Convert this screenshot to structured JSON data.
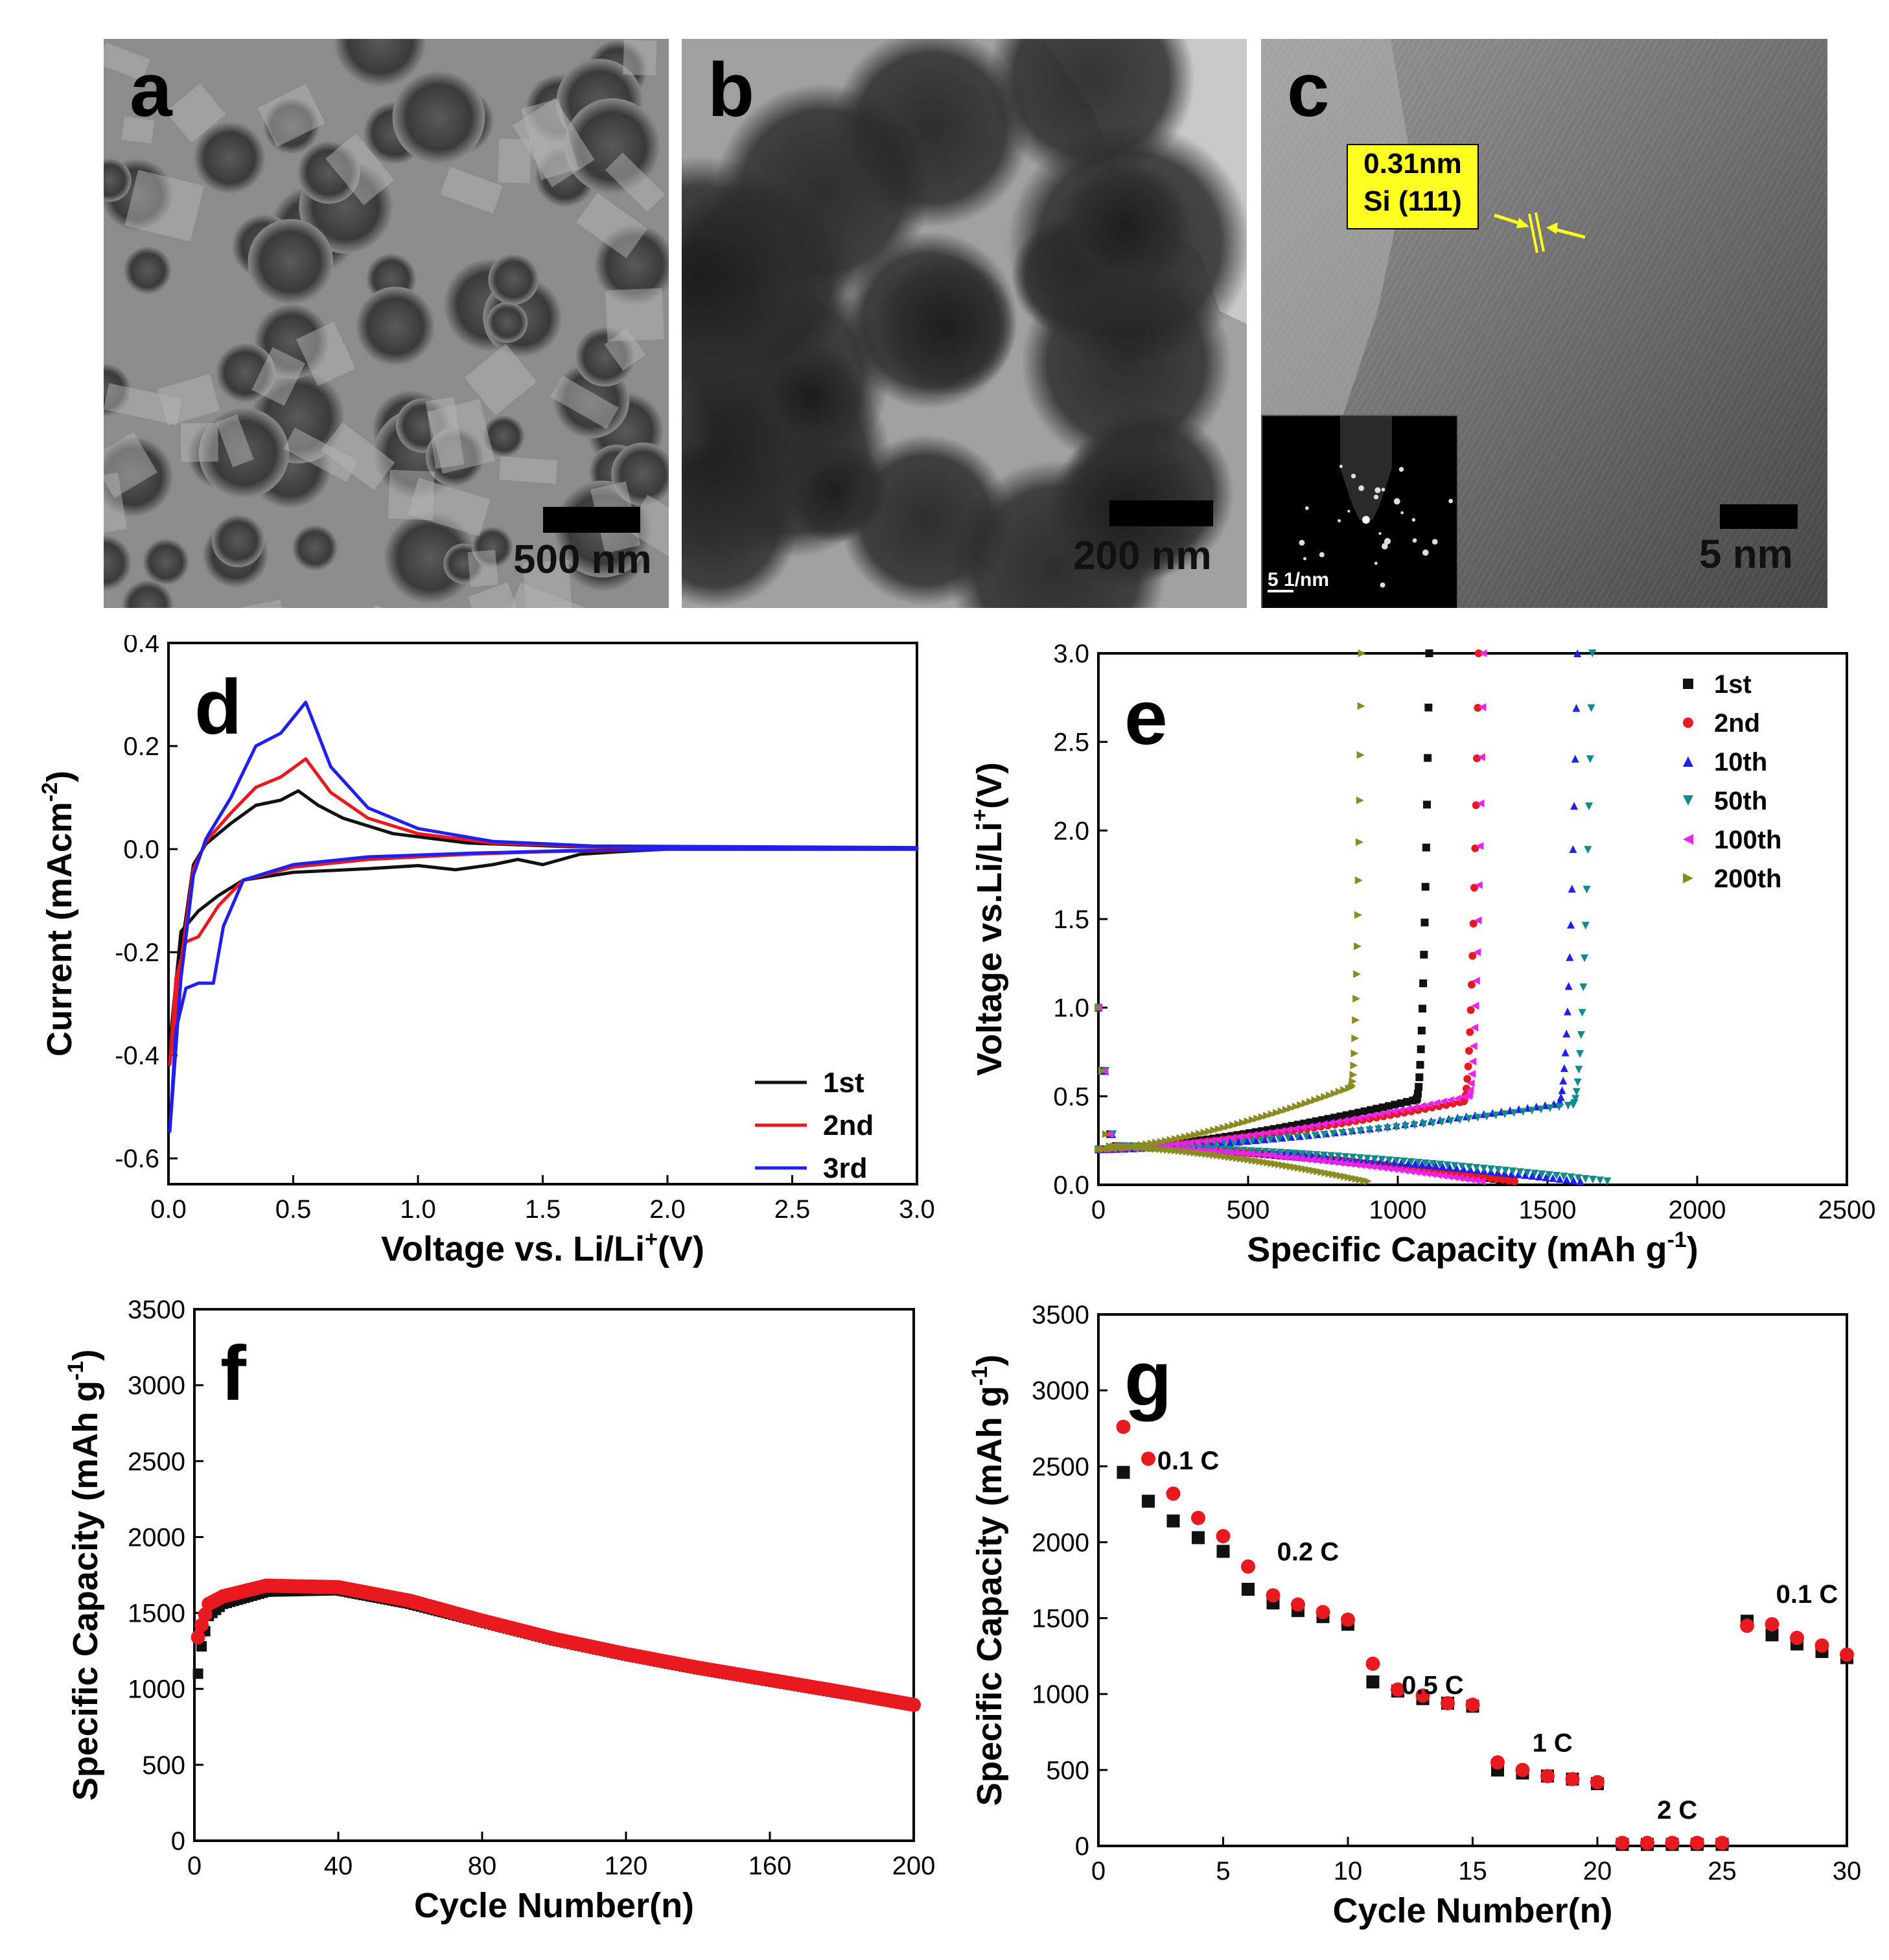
{
  "figure": {
    "a": {
      "label": "a",
      "scale": "500 nm"
    },
    "b": {
      "label": "b",
      "scale": "200 nm"
    },
    "c": {
      "label": "c",
      "scale": "5 nm",
      "annotation_line1": "0.31nm",
      "annotation_line2": "Si (111)",
      "inset_scale": "5 1/nm"
    }
  },
  "colors": {
    "black": "#111111",
    "red": "#e8191f",
    "blue": "#1f1ff0",
    "teal": "#138b8b",
    "magenta": "#ee22ee",
    "olive": "#8b8b22",
    "highlight": "#ffff22"
  },
  "chart_data": [
    {
      "id": "d",
      "label": "d",
      "type": "line",
      "title": "",
      "xlabel": "Voltage  vs. Li/Li",
      "xlabel_sup": "+",
      "xlabel_tail": "(V)",
      "ylabel": "Current (mAcm",
      "ylabel_sup": "-2",
      "ylabel_tail": ")",
      "xlim": [
        0,
        3
      ],
      "ylim": [
        -0.65,
        0.4
      ],
      "xticks": [
        "0.0",
        "0.5",
        "1.0",
        "1.5",
        "2.0",
        "2.5",
        "3.0"
      ],
      "yticks": [
        "-0.6",
        "-0.4",
        "-0.2",
        "0.0",
        "0.2",
        "0.4"
      ],
      "legend": [
        "1st",
        "2nd",
        "3rd"
      ],
      "series": [
        {
          "name": "1st",
          "color": "#111111",
          "anodic": [
            [
              0.005,
              -0.38
            ],
            [
              0.05,
              -0.2
            ],
            [
              0.1,
              -0.03
            ],
            [
              0.15,
              0.01
            ],
            [
              0.25,
              0.05
            ],
            [
              0.35,
              0.085
            ],
            [
              0.45,
              0.095
            ],
            [
              0.52,
              0.113
            ],
            [
              0.6,
              0.085
            ],
            [
              0.7,
              0.06
            ],
            [
              0.9,
              0.03
            ],
            [
              1.2,
              0.012
            ],
            [
              1.6,
              0.005
            ],
            [
              2.0,
              0.003
            ],
            [
              3.0,
              0.002
            ]
          ],
          "cathodic": [
            [
              3.0,
              0.0
            ],
            [
              2.0,
              0.0
            ],
            [
              1.8,
              -0.005
            ],
            [
              1.65,
              -0.01
            ],
            [
              1.5,
              -0.03
            ],
            [
              1.4,
              -0.02
            ],
            [
              1.3,
              -0.03
            ],
            [
              1.15,
              -0.04
            ],
            [
              1.0,
              -0.032
            ],
            [
              0.8,
              -0.038
            ],
            [
              0.5,
              -0.045
            ],
            [
              0.3,
              -0.06
            ],
            [
              0.2,
              -0.09
            ],
            [
              0.12,
              -0.12
            ],
            [
              0.05,
              -0.16
            ],
            [
              0.005,
              -0.38
            ]
          ]
        },
        {
          "name": "2nd",
          "color": "#e8191f",
          "anodic": [
            [
              0.005,
              -0.42
            ],
            [
              0.05,
              -0.22
            ],
            [
              0.1,
              -0.04
            ],
            [
              0.15,
              0.015
            ],
            [
              0.25,
              0.07
            ],
            [
              0.35,
              0.12
            ],
            [
              0.45,
              0.14
            ],
            [
              0.55,
              0.175
            ],
            [
              0.65,
              0.11
            ],
            [
              0.8,
              0.06
            ],
            [
              1.0,
              0.03
            ],
            [
              1.3,
              0.012
            ],
            [
              1.7,
              0.005
            ],
            [
              3.0,
              0.002
            ]
          ],
          "cathodic": [
            [
              3.0,
              0.0
            ],
            [
              2.0,
              0.0
            ],
            [
              1.8,
              -0.002
            ],
            [
              1.5,
              -0.005
            ],
            [
              1.2,
              -0.01
            ],
            [
              0.8,
              -0.02
            ],
            [
              0.5,
              -0.035
            ],
            [
              0.3,
              -0.06
            ],
            [
              0.2,
              -0.11
            ],
            [
              0.12,
              -0.17
            ],
            [
              0.07,
              -0.18
            ],
            [
              0.03,
              -0.25
            ],
            [
              0.005,
              -0.42
            ]
          ]
        },
        {
          "name": "3rd",
          "color": "#1f1ff0",
          "anodic": [
            [
              0.005,
              -0.55
            ],
            [
              0.05,
              -0.25
            ],
            [
              0.1,
              -0.05
            ],
            [
              0.15,
              0.02
            ],
            [
              0.25,
              0.1
            ],
            [
              0.35,
              0.2
            ],
            [
              0.45,
              0.225
            ],
            [
              0.55,
              0.285
            ],
            [
              0.65,
              0.16
            ],
            [
              0.8,
              0.08
            ],
            [
              1.0,
              0.04
            ],
            [
              1.3,
              0.015
            ],
            [
              1.7,
              0.006
            ],
            [
              3.0,
              0.003
            ]
          ],
          "cathodic": [
            [
              3.0,
              0.0
            ],
            [
              2.0,
              0.0
            ],
            [
              1.6,
              -0.003
            ],
            [
              1.2,
              -0.008
            ],
            [
              0.8,
              -0.015
            ],
            [
              0.5,
              -0.03
            ],
            [
              0.3,
              -0.06
            ],
            [
              0.22,
              -0.15
            ],
            [
              0.18,
              -0.26
            ],
            [
              0.12,
              -0.26
            ],
            [
              0.07,
              -0.27
            ],
            [
              0.03,
              -0.35
            ],
            [
              0.005,
              -0.55
            ]
          ]
        }
      ]
    },
    {
      "id": "e",
      "label": "e",
      "type": "scatter",
      "xlabel": "Specific Capacity (mAh g",
      "xlabel_sup": "-1",
      "xlabel_tail": ")",
      "ylabel": "Voltage vs.Li/Li",
      "ylabel_sup": "+",
      "ylabel_tail": "(V)",
      "xlim": [
        0,
        2500
      ],
      "ylim": [
        0,
        3.0
      ],
      "xticks": [
        "0",
        "500",
        "1000",
        "1500",
        "2000",
        "2500"
      ],
      "yticks": [
        "0.0",
        "0.5",
        "1.0",
        "1.5",
        "2.0",
        "2.5",
        "3.0"
      ],
      "legend": [
        "1st",
        "2nd",
        "10th",
        "50th",
        "100th",
        "200th"
      ],
      "series": [
        {
          "name": "1st",
          "color": "#111111",
          "marker": "square",
          "discharge_cap": 1380,
          "charge_cap": 1105,
          "charge_plateau": 0.48
        },
        {
          "name": "2nd",
          "color": "#e8191f",
          "marker": "circle",
          "discharge_cap": 1390,
          "charge_cap": 1270,
          "charge_plateau": 0.47
        },
        {
          "name": "10th",
          "color": "#1f1ff0",
          "marker": "triangle-up",
          "discharge_cap": 1610,
          "charge_cap": 1600,
          "charge_plateau": 0.46
        },
        {
          "name": "50th",
          "color": "#138b8b",
          "marker": "triangle-down",
          "discharge_cap": 1700,
          "charge_cap": 1650,
          "charge_plateau": 0.45
        },
        {
          "name": "100th",
          "color": "#ee22ee",
          "marker": "triangle-left",
          "discharge_cap": 1280,
          "charge_cap": 1285,
          "charge_plateau": 0.5
        },
        {
          "name": "200th",
          "color": "#8b8b22",
          "marker": "triangle-right",
          "discharge_cap": 900,
          "charge_cap": 880,
          "charge_plateau": 0.55
        }
      ]
    },
    {
      "id": "f",
      "label": "f",
      "type": "scatter",
      "xlabel": "Cycle Number(n)",
      "ylabel": "Specific Capacity (mAh g",
      "ylabel_sup": "-1",
      "ylabel_tail": ")",
      "xlim": [
        0,
        200
      ],
      "ylim": [
        0,
        3500
      ],
      "xticks": [
        "0",
        "40",
        "80",
        "120",
        "160",
        "200"
      ],
      "yticks": [
        "0",
        "500",
        "1000",
        "1500",
        "2000",
        "2500",
        "3000",
        "3500"
      ],
      "series": [
        {
          "name": "charge",
          "color": "#111111",
          "marker": "square",
          "keypoints": [
            [
              1,
              1100
            ],
            [
              2,
              1280
            ],
            [
              4,
              1480
            ],
            [
              8,
              1560
            ],
            [
              20,
              1640
            ],
            [
              40,
              1650
            ],
            [
              60,
              1560
            ],
            [
              80,
              1440
            ],
            [
              100,
              1320
            ],
            [
              120,
              1220
            ],
            [
              140,
              1130
            ],
            [
              160,
              1050
            ],
            [
              180,
              970
            ],
            [
              200,
              890
            ]
          ]
        },
        {
          "name": "discharge",
          "color": "#e8191f",
          "marker": "circle",
          "keypoints": [
            [
              1,
              1340
            ],
            [
              2,
              1420
            ],
            [
              4,
              1560
            ],
            [
              8,
              1610
            ],
            [
              20,
              1680
            ],
            [
              40,
              1670
            ],
            [
              60,
              1580
            ],
            [
              80,
              1450
            ],
            [
              100,
              1330
            ],
            [
              120,
              1230
            ],
            [
              140,
              1140
            ],
            [
              160,
              1060
            ],
            [
              180,
              980
            ],
            [
              200,
              895
            ]
          ]
        }
      ]
    },
    {
      "id": "g",
      "label": "g",
      "type": "scatter",
      "xlabel": "Cycle Number(n)",
      "ylabel": "Specific Capacity (mAh g",
      "ylabel_sup": "-1",
      "ylabel_tail": ")",
      "xlim": [
        0,
        30
      ],
      "ylim": [
        0,
        3500
      ],
      "xticks": [
        "0",
        "5",
        "10",
        "15",
        "20",
        "25",
        "30"
      ],
      "yticks": [
        "0",
        "500",
        "1000",
        "1500",
        "2000",
        "2500",
        "3000",
        "3500"
      ],
      "annotations": [
        {
          "text": "0.1 C",
          "x": 3.6,
          "y": 2480
        },
        {
          "text": "0.2 C",
          "x": 8.4,
          "y": 1880
        },
        {
          "text": "0.5 C",
          "x": 13.4,
          "y": 1000
        },
        {
          "text": "1 C",
          "x": 18.2,
          "y": 620
        },
        {
          "text": "2 C",
          "x": 23.2,
          "y": 180
        },
        {
          "text": "0.1 C",
          "x": 28.4,
          "y": 1600
        }
      ],
      "x": [
        1,
        2,
        3,
        4,
        5,
        6,
        7,
        8,
        9,
        10,
        11,
        12,
        13,
        14,
        15,
        16,
        17,
        18,
        19,
        20,
        21,
        22,
        23,
        24,
        25,
        26,
        27,
        28,
        29,
        30
      ],
      "series": [
        {
          "name": "charge",
          "color": "#111111",
          "marker": "square",
          "values": [
            2460,
            2270,
            2140,
            2030,
            1940,
            1690,
            1600,
            1550,
            1510,
            1460,
            1080,
            1020,
            970,
            940,
            920,
            500,
            480,
            460,
            440,
            410,
            10,
            10,
            10,
            10,
            10,
            1480,
            1390,
            1330,
            1280,
            1240
          ]
        },
        {
          "name": "discharge",
          "color": "#e8191f",
          "marker": "circle",
          "values": [
            2760,
            2550,
            2320,
            2160,
            2040,
            1840,
            1650,
            1590,
            1540,
            1490,
            1200,
            1030,
            990,
            940,
            930,
            550,
            500,
            460,
            440,
            420,
            20,
            20,
            20,
            20,
            20,
            1450,
            1460,
            1370,
            1320,
            1260
          ]
        }
      ]
    }
  ]
}
